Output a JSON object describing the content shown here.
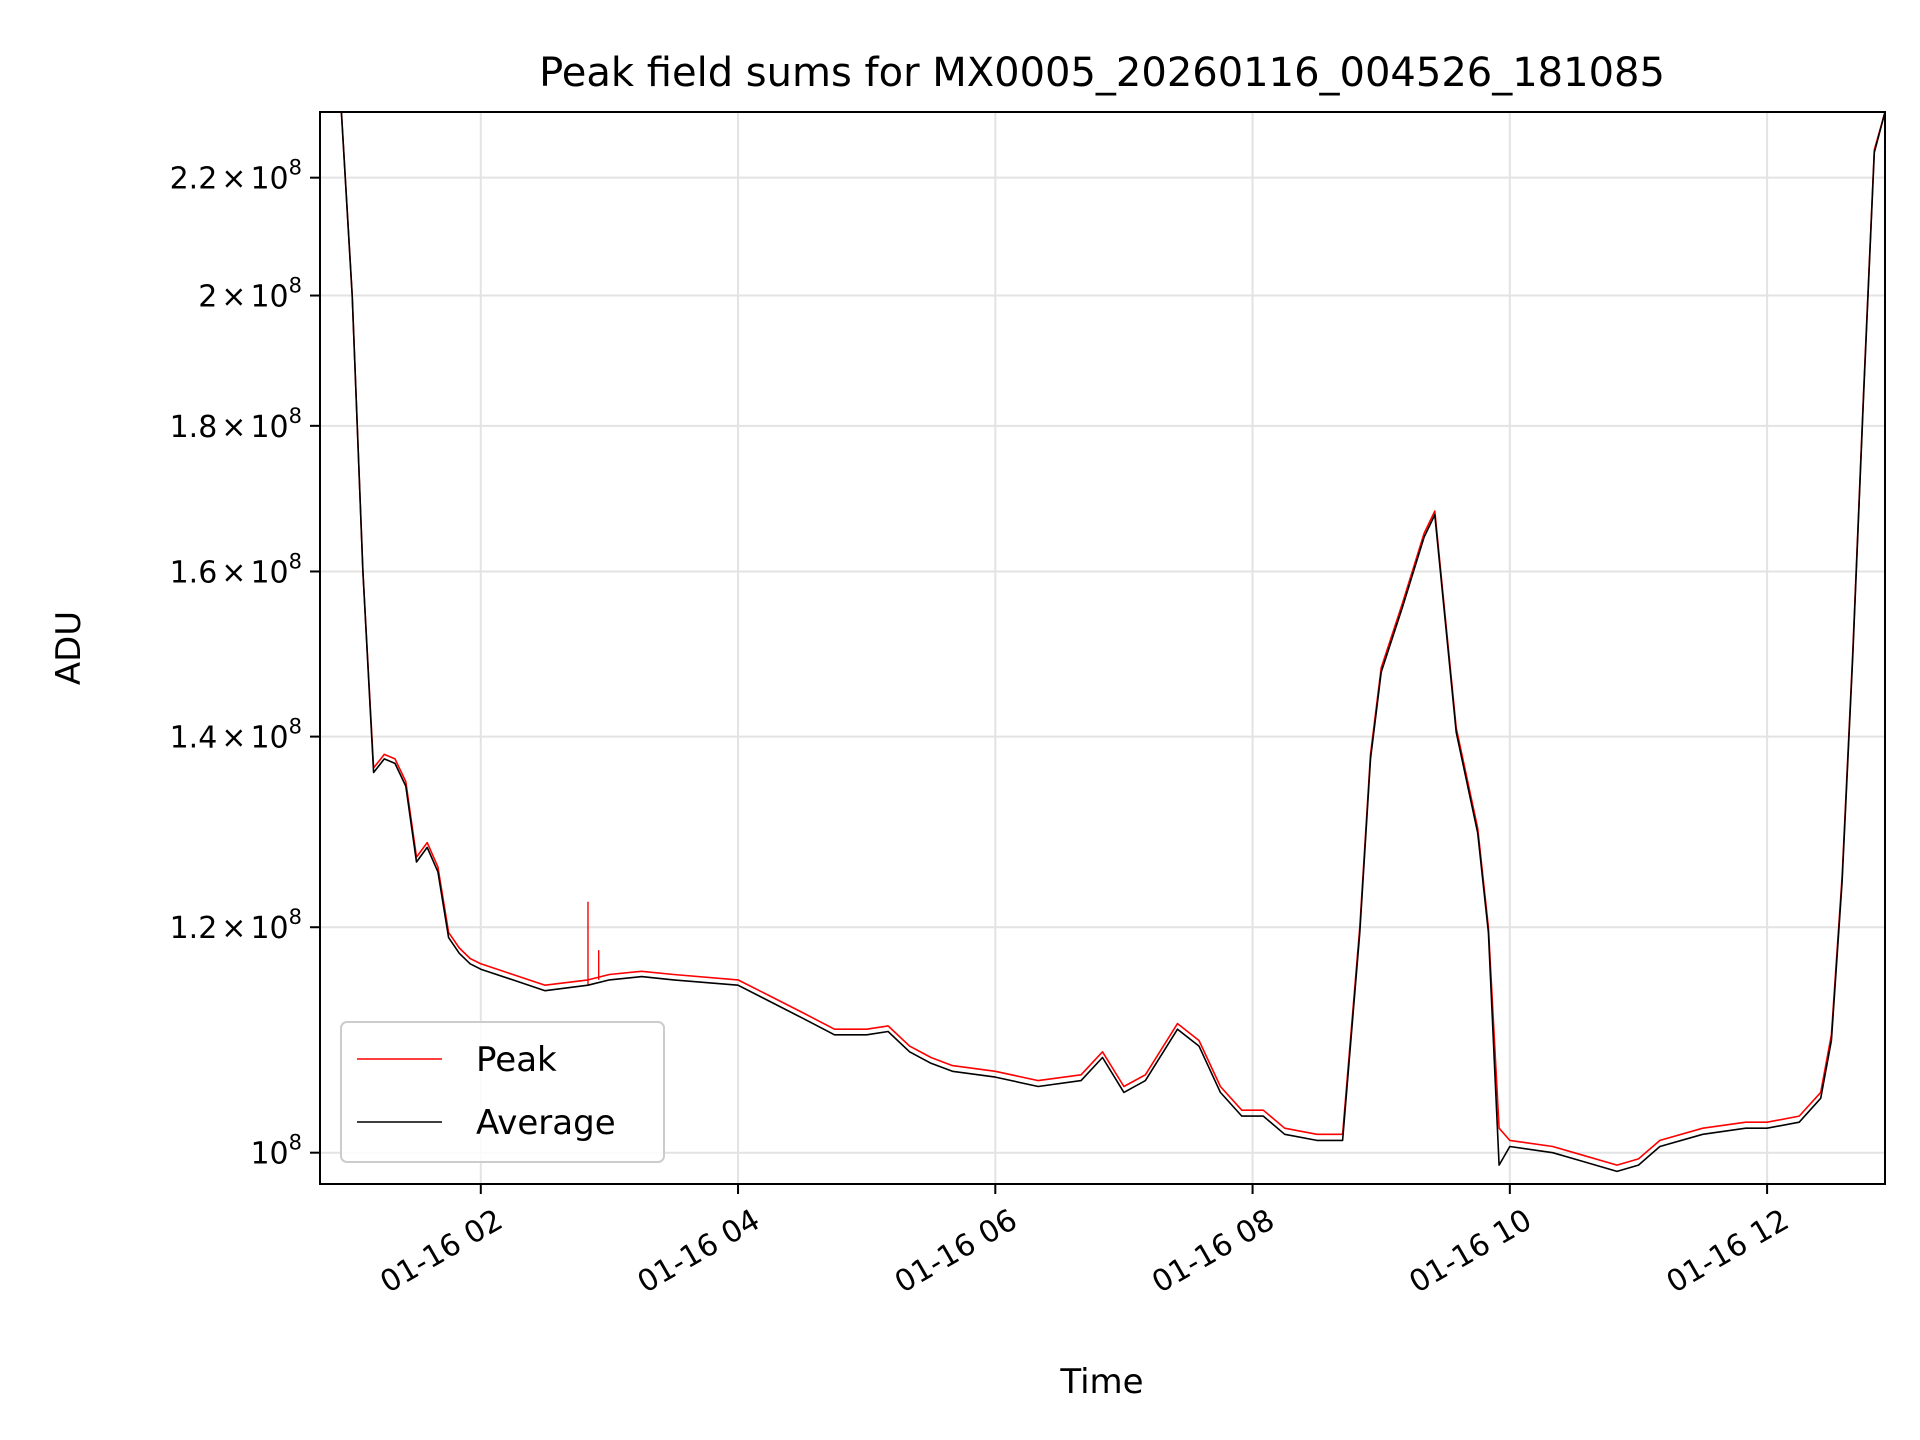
{
  "chart_data": {
    "type": "line",
    "title": "Peak field sums for MX0005_20260116_004526_181085",
    "xlabel": "Time",
    "ylabel": "ADU",
    "y_scale": "log",
    "ylim": [
      97500000,
      232000000
    ],
    "xlim": [
      "2026-01-16 00:45",
      "2026-01-16 12:55"
    ],
    "grid": true,
    "legend_position": "lower-left",
    "x_ticks": [
      {
        "label": "01-16 02",
        "value": "2026-01-16 02:00"
      },
      {
        "label": "01-16 04",
        "value": "2026-01-16 04:00"
      },
      {
        "label": "01-16 06",
        "value": "2026-01-16 06:00"
      },
      {
        "label": "01-16 08",
        "value": "2026-01-16 08:00"
      },
      {
        "label": "01-16 10",
        "value": "2026-01-16 10:00"
      },
      {
        "label": "01-16 12",
        "value": "2026-01-16 12:00"
      }
    ],
    "y_ticks": [
      {
        "value": 100000000,
        "base": "10",
        "exp": "8"
      },
      {
        "value": 120000000,
        "mant": "1.2",
        "base": "10",
        "exp": "8"
      },
      {
        "value": 140000000,
        "mant": "1.4",
        "base": "10",
        "exp": "8"
      },
      {
        "value": 160000000,
        "mant": "1.6",
        "base": "10",
        "exp": "8"
      },
      {
        "value": 180000000,
        "mant": "1.8",
        "base": "10",
        "exp": "8"
      },
      {
        "value": 200000000,
        "mant": "2",
        "base": "10",
        "exp": "8"
      },
      {
        "value": 220000000,
        "mant": "2.2",
        "base": "10",
        "exp": "8"
      }
    ],
    "series": [
      {
        "name": "Peak",
        "color": "#ff0000",
        "x": [
          "2026-01-16 00:45",
          "2026-01-16 00:55",
          "2026-01-16 01:00",
          "2026-01-16 01:05",
          "2026-01-16 01:10",
          "2026-01-16 01:15",
          "2026-01-16 01:20",
          "2026-01-16 01:25",
          "2026-01-16 01:30",
          "2026-01-16 01:35",
          "2026-01-16 01:40",
          "2026-01-16 01:45",
          "2026-01-16 01:50",
          "2026-01-16 01:55",
          "2026-01-16 02:00",
          "2026-01-16 02:15",
          "2026-01-16 02:30",
          "2026-01-16 02:50",
          "2026-01-16 03:00",
          "2026-01-16 03:15",
          "2026-01-16 03:30",
          "2026-01-16 04:00",
          "2026-01-16 04:15",
          "2026-01-16 04:30",
          "2026-01-16 04:45",
          "2026-01-16 05:00",
          "2026-01-16 05:10",
          "2026-01-16 05:20",
          "2026-01-16 05:30",
          "2026-01-16 05:40",
          "2026-01-16 06:00",
          "2026-01-16 06:20",
          "2026-01-16 06:40",
          "2026-01-16 06:50",
          "2026-01-16 07:00",
          "2026-01-16 07:10",
          "2026-01-16 07:25",
          "2026-01-16 07:35",
          "2026-01-16 07:45",
          "2026-01-16 07:55",
          "2026-01-16 08:05",
          "2026-01-16 08:15",
          "2026-01-16 08:30",
          "2026-01-16 08:42",
          "2026-01-16 08:50",
          "2026-01-16 08:55",
          "2026-01-16 09:00",
          "2026-01-16 09:10",
          "2026-01-16 09:20",
          "2026-01-16 09:25",
          "2026-01-16 09:35",
          "2026-01-16 09:45",
          "2026-01-16 09:50",
          "2026-01-16 09:55",
          "2026-01-16 10:00",
          "2026-01-16 10:20",
          "2026-01-16 10:30",
          "2026-01-16 10:50",
          "2026-01-16 11:00",
          "2026-01-16 11:10",
          "2026-01-16 11:30",
          "2026-01-16 11:50",
          "2026-01-16 12:00",
          "2026-01-16 12:15",
          "2026-01-16 12:25",
          "2026-01-16 12:30",
          "2026-01-16 12:35",
          "2026-01-16 12:40",
          "2026-01-16 12:45",
          "2026-01-16 12:50",
          "2026-01-16 12:55"
        ],
        "y": [
          232000000,
          232000000,
          200000000,
          160000000,
          136500000,
          138000000,
          137500000,
          135000000,
          127000000,
          128500000,
          126000000,
          119500000,
          118000000,
          117000000,
          116500000,
          115500000,
          114500000,
          115000000,
          115500000,
          115800000,
          115500000,
          115000000,
          113500000,
          112000000,
          110500000,
          110500000,
          110800000,
          109000000,
          108000000,
          107300000,
          106800000,
          106000000,
          106500000,
          108500000,
          105500000,
          106500000,
          111000000,
          109500000,
          105500000,
          103500000,
          103500000,
          102000000,
          101500000,
          101500000,
          120000000,
          138000000,
          148000000,
          156000000,
          165000000,
          168000000,
          141000000,
          130000000,
          120000000,
          102000000,
          101000000,
          100500000,
          100000000,
          99000000,
          99500000,
          101000000,
          102000000,
          102500000,
          102500000,
          103000000,
          105000000,
          110000000,
          125000000,
          150000000,
          185000000,
          225000000,
          232000000
        ],
        "spikes": [
          {
            "x": "2026-01-16 02:50",
            "y": 122500000
          },
          {
            "x": "2026-01-16 02:55",
            "y": 117800000
          }
        ]
      },
      {
        "name": "Average",
        "color": "#000000",
        "x": [
          "2026-01-16 00:45",
          "2026-01-16 00:55",
          "2026-01-16 01:00",
          "2026-01-16 01:05",
          "2026-01-16 01:10",
          "2026-01-16 01:15",
          "2026-01-16 01:20",
          "2026-01-16 01:25",
          "2026-01-16 01:30",
          "2026-01-16 01:35",
          "2026-01-16 01:40",
          "2026-01-16 01:45",
          "2026-01-16 01:50",
          "2026-01-16 01:55",
          "2026-01-16 02:00",
          "2026-01-16 02:15",
          "2026-01-16 02:30",
          "2026-01-16 02:50",
          "2026-01-16 03:00",
          "2026-01-16 03:15",
          "2026-01-16 03:30",
          "2026-01-16 04:00",
          "2026-01-16 04:15",
          "2026-01-16 04:30",
          "2026-01-16 04:45",
          "2026-01-16 05:00",
          "2026-01-16 05:10",
          "2026-01-16 05:20",
          "2026-01-16 05:30",
          "2026-01-16 05:40",
          "2026-01-16 06:00",
          "2026-01-16 06:20",
          "2026-01-16 06:40",
          "2026-01-16 06:50",
          "2026-01-16 07:00",
          "2026-01-16 07:10",
          "2026-01-16 07:25",
          "2026-01-16 07:35",
          "2026-01-16 07:45",
          "2026-01-16 07:55",
          "2026-01-16 08:05",
          "2026-01-16 08:15",
          "2026-01-16 08:30",
          "2026-01-16 08:42",
          "2026-01-16 08:50",
          "2026-01-16 08:55",
          "2026-01-16 09:00",
          "2026-01-16 09:10",
          "2026-01-16 09:20",
          "2026-01-16 09:25",
          "2026-01-16 09:35",
          "2026-01-16 09:45",
          "2026-01-16 09:50",
          "2026-01-16 09:55",
          "2026-01-16 10:00",
          "2026-01-16 10:20",
          "2026-01-16 10:30",
          "2026-01-16 10:50",
          "2026-01-16 11:00",
          "2026-01-16 11:10",
          "2026-01-16 11:30",
          "2026-01-16 11:50",
          "2026-01-16 12:00",
          "2026-01-16 12:15",
          "2026-01-16 12:25",
          "2026-01-16 12:30",
          "2026-01-16 12:35",
          "2026-01-16 12:40",
          "2026-01-16 12:45",
          "2026-01-16 12:50",
          "2026-01-16 12:55"
        ],
        "y": [
          232000000,
          232000000,
          200000000,
          160000000,
          136000000,
          137500000,
          137000000,
          134500000,
          126500000,
          128000000,
          125500000,
          119000000,
          117500000,
          116500000,
          116000000,
          115000000,
          114000000,
          114500000,
          115000000,
          115300000,
          115000000,
          114500000,
          113000000,
          111500000,
          110000000,
          110000000,
          110300000,
          108500000,
          107500000,
          106800000,
          106300000,
          105500000,
          106000000,
          108000000,
          105000000,
          106000000,
          110500000,
          109000000,
          105000000,
          103000000,
          103000000,
          101500000,
          101000000,
          101000000,
          119500000,
          137500000,
          147500000,
          155500000,
          164500000,
          167500000,
          140500000,
          129500000,
          119500000,
          99000000,
          100500000,
          100000000,
          99500000,
          98500000,
          99000000,
          100500000,
          101500000,
          102000000,
          102000000,
          102500000,
          104500000,
          109500000,
          124500000,
          149500000,
          184500000,
          224500000,
          232000000
        ]
      }
    ]
  }
}
